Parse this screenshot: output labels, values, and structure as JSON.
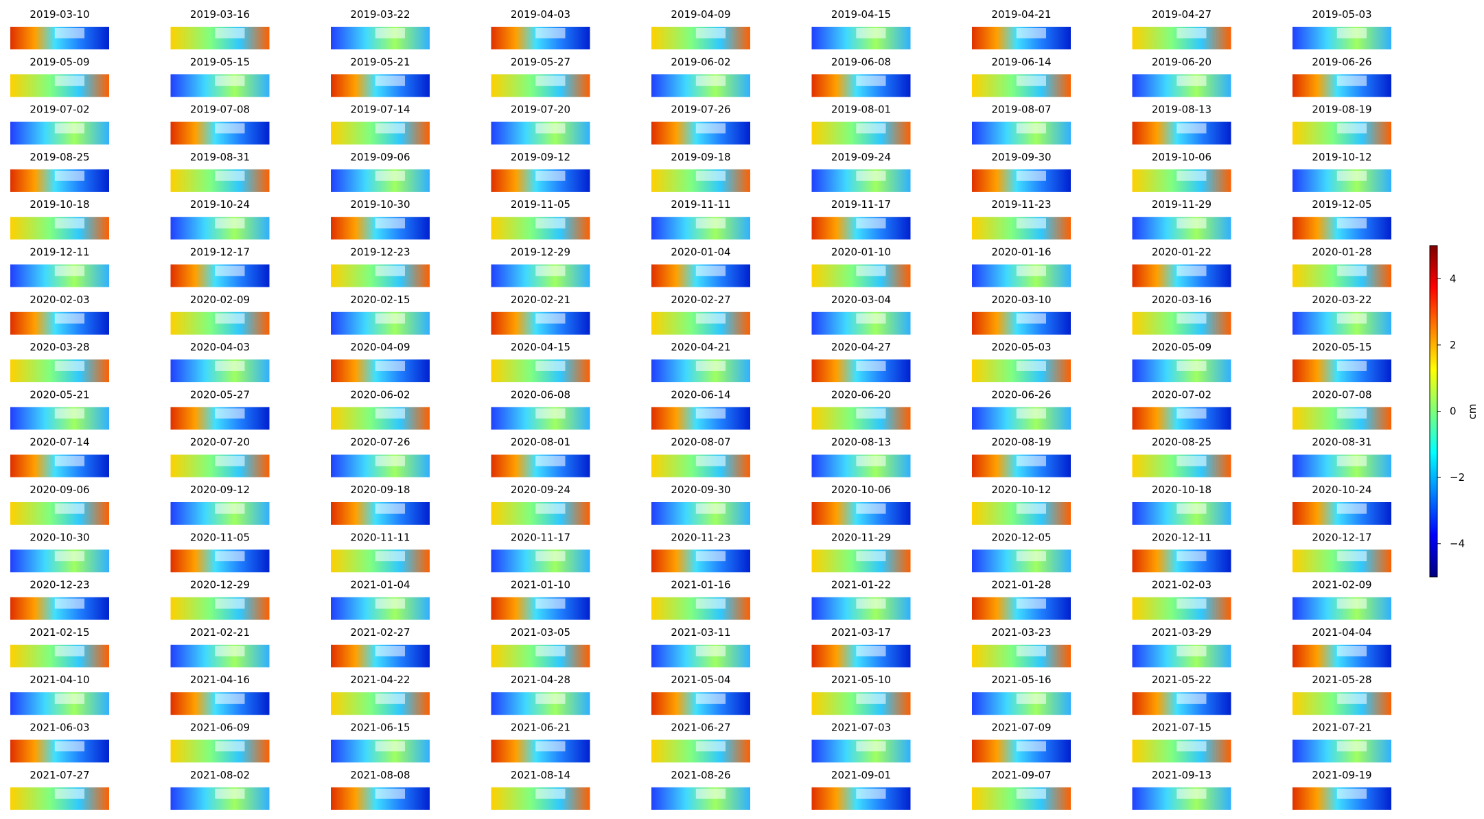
{
  "chart_data": {
    "type": "image-grid",
    "titles": [
      "2019-03-10",
      "2019-03-16",
      "2019-03-22",
      "2019-04-03",
      "2019-04-09",
      "2019-04-15",
      "2019-04-21",
      "2019-04-27",
      "2019-05-03",
      "2019-05-09",
      "2019-05-15",
      "2019-05-21",
      "2019-05-27",
      "2019-06-02",
      "2019-06-08",
      "2019-06-14",
      "2019-06-20",
      "2019-06-26",
      "2019-07-02",
      "2019-07-08",
      "2019-07-14",
      "2019-07-20",
      "2019-07-26",
      "2019-08-01",
      "2019-08-07",
      "2019-08-13",
      "2019-08-19",
      "2019-08-25",
      "2019-08-31",
      "2019-09-06",
      "2019-09-12",
      "2019-09-18",
      "2019-09-24",
      "2019-09-30",
      "2019-10-06",
      "2019-10-12",
      "2019-10-18",
      "2019-10-24",
      "2019-10-30",
      "2019-11-05",
      "2019-11-11",
      "2019-11-17",
      "2019-11-23",
      "2019-11-29",
      "2019-12-05",
      "2019-12-11",
      "2019-12-17",
      "2019-12-23",
      "2019-12-29",
      "2020-01-04",
      "2020-01-10",
      "2020-01-16",
      "2020-01-22",
      "2020-01-28",
      "2020-02-03",
      "2020-02-09",
      "2020-02-15",
      "2020-02-21",
      "2020-02-27",
      "2020-03-04",
      "2020-03-10",
      "2020-03-16",
      "2020-03-22",
      "2020-03-28",
      "2020-04-03",
      "2020-04-09",
      "2020-04-15",
      "2020-04-21",
      "2020-04-27",
      "2020-05-03",
      "2020-05-09",
      "2020-05-15",
      "2020-05-21",
      "2020-05-27",
      "2020-06-02",
      "2020-06-08",
      "2020-06-14",
      "2020-06-20",
      "2020-06-26",
      "2020-07-02",
      "2020-07-08",
      "2020-07-14",
      "2020-07-20",
      "2020-07-26",
      "2020-08-01",
      "2020-08-07",
      "2020-08-13",
      "2020-08-19",
      "2020-08-25",
      "2020-08-31",
      "2020-09-06",
      "2020-09-12",
      "2020-09-18",
      "2020-09-24",
      "2020-09-30",
      "2020-10-06",
      "2020-10-12",
      "2020-10-18",
      "2020-10-24",
      "2020-10-30",
      "2020-11-05",
      "2020-11-11",
      "2020-11-17",
      "2020-11-23",
      "2020-11-29",
      "2020-12-05",
      "2020-12-11",
      "2020-12-17",
      "2020-12-23",
      "2020-12-29",
      "2021-01-04",
      "2021-01-10",
      "2021-01-16",
      "2021-01-22",
      "2021-01-28",
      "2021-02-03",
      "2021-02-09",
      "2021-02-15",
      "2021-02-21",
      "2021-02-27",
      "2021-03-05",
      "2021-03-11",
      "2021-03-17",
      "2021-03-23",
      "2021-03-29",
      "2021-04-04",
      "2021-04-10",
      "2021-04-16",
      "2021-04-22",
      "2021-04-28",
      "2021-05-04",
      "2021-05-10",
      "2021-05-16",
      "2021-05-22",
      "2021-05-28",
      "2021-06-03",
      "2021-06-09",
      "2021-06-15",
      "2021-06-21",
      "2021-06-27",
      "2021-07-03",
      "2021-07-09",
      "2021-07-15",
      "2021-07-21",
      "2021-07-27",
      "2021-08-02",
      "2021-08-08",
      "2021-08-14",
      "2021-08-26",
      "2021-09-01",
      "2021-09-07",
      "2021-09-13",
      "2021-09-19"
    ],
    "colorbar": {
      "label": "cm",
      "ylim": [
        -5,
        5
      ],
      "yticks": [
        {
          "value": -4,
          "label": "−4"
        },
        {
          "value": -2,
          "label": "−2"
        },
        0,
        2,
        4
      ]
    }
  }
}
